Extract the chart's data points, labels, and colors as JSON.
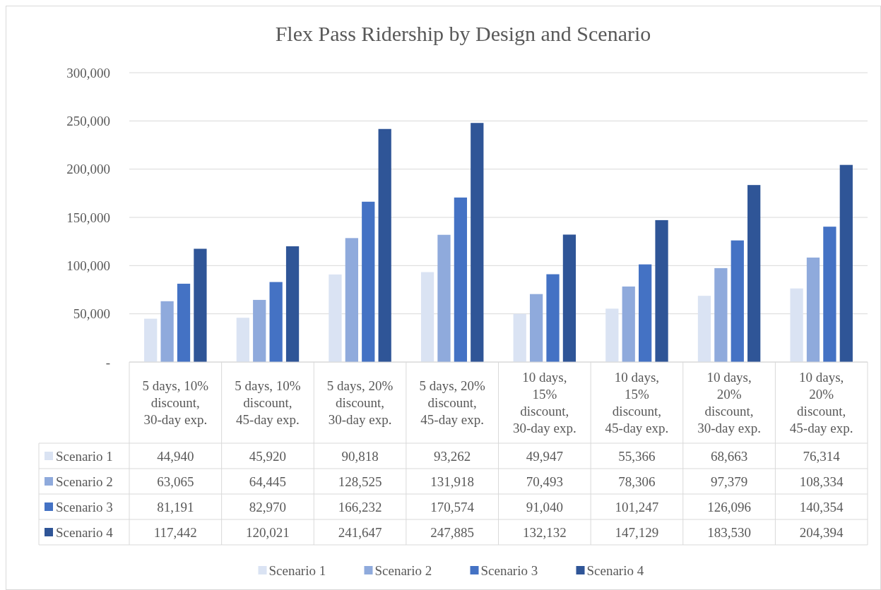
{
  "chart_data": {
    "type": "bar",
    "title": "Flex Pass Ridership by Design and Scenario",
    "categories": [
      "5 days, 10% discount, 30-day exp.",
      "5 days, 10% discount, 45-day exp.",
      "5 days, 20% discount, 30-day exp.",
      "5 days, 20% discount, 45-day exp.",
      "10 days, 15% discount, 30-day exp.",
      "10 days, 15% discount, 45-day exp.",
      "10 days, 20% discount, 30-day exp.",
      "10 days, 20% discount, 45-day exp."
    ],
    "series": [
      {
        "name": "Scenario 1",
        "color": "#dae3f3",
        "values": [
          44940,
          45920,
          90818,
          93262,
          49947,
          55366,
          68663,
          76314
        ],
        "value_labels": [
          "44,940",
          "45,920",
          "90,818",
          "93,262",
          "49,947",
          "55,366",
          "68,663",
          "76,314"
        ]
      },
      {
        "name": "Scenario 2",
        "color": "#8faadc",
        "values": [
          63065,
          64445,
          128525,
          131918,
          70493,
          78306,
          97379,
          108334
        ],
        "value_labels": [
          "63,065",
          "64,445",
          "128,525",
          "131,918",
          "70,493",
          "78,306",
          "97,379",
          "108,334"
        ]
      },
      {
        "name": "Scenario 3",
        "color": "#4472c4",
        "values": [
          81191,
          82970,
          166232,
          170574,
          91040,
          101247,
          126096,
          140354
        ],
        "value_labels": [
          "81,191",
          "82,970",
          "166,232",
          "170,574",
          "91,040",
          "101,247",
          "126,096",
          "140,354"
        ]
      },
      {
        "name": "Scenario 4",
        "color": "#2f5597",
        "values": [
          117442,
          120021,
          241647,
          247885,
          132132,
          147129,
          183530,
          204394
        ],
        "value_labels": [
          "117,442",
          "120,021",
          "241,647",
          "247,885",
          "132,132",
          "147,129",
          "183,530",
          "204,394"
        ]
      }
    ],
    "ylim": [
      0,
      300000
    ],
    "yticks": [
      {
        "value": 0,
        "label": "-"
      },
      {
        "value": 50000,
        "label": "50,000"
      },
      {
        "value": 100000,
        "label": "100,000"
      },
      {
        "value": 150000,
        "label": "150,000"
      },
      {
        "value": 200000,
        "label": "200,000"
      },
      {
        "value": 250000,
        "label": "250,000"
      },
      {
        "value": 300000,
        "label": "300,000"
      }
    ],
    "grid": "y",
    "legend": "bottom"
  }
}
